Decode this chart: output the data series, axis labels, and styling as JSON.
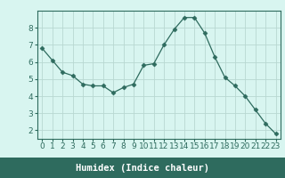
{
  "x": [
    0,
    1,
    2,
    3,
    4,
    5,
    6,
    7,
    8,
    9,
    10,
    11,
    12,
    13,
    14,
    15,
    16,
    17,
    18,
    19,
    20,
    21,
    22,
    23
  ],
  "y": [
    6.8,
    6.1,
    5.4,
    5.2,
    4.7,
    4.6,
    4.6,
    4.2,
    4.5,
    4.7,
    5.8,
    5.9,
    7.0,
    7.9,
    8.6,
    8.6,
    7.7,
    6.3,
    5.1,
    4.6,
    4.0,
    3.2,
    2.4,
    1.8
  ],
  "title": "",
  "xlabel": "Humidex (Indice chaleur)",
  "ylabel": "",
  "xlim": [
    -0.5,
    23.5
  ],
  "ylim": [
    1.5,
    9.0
  ],
  "yticks": [
    2,
    3,
    4,
    5,
    6,
    7,
    8
  ],
  "xticks": [
    0,
    1,
    2,
    3,
    4,
    5,
    6,
    7,
    8,
    9,
    10,
    11,
    12,
    13,
    14,
    15,
    16,
    17,
    18,
    19,
    20,
    21,
    22,
    23
  ],
  "line_color": "#2e6b5e",
  "marker": "D",
  "marker_size": 2.5,
  "bg_color": "#d8f5f0",
  "plot_bg_color": "#d8f5f0",
  "grid_color": "#b8d8d2",
  "tick_label_fontsize": 6.5,
  "xlabel_fontsize": 7.5,
  "xlabel_color": "#2e6b5e",
  "xlabel_bg": "#2e6b5e",
  "bottom_bar_color": "#2e6b5e",
  "tick_color": "#2e6b5e",
  "spine_color": "#2e6b5e"
}
